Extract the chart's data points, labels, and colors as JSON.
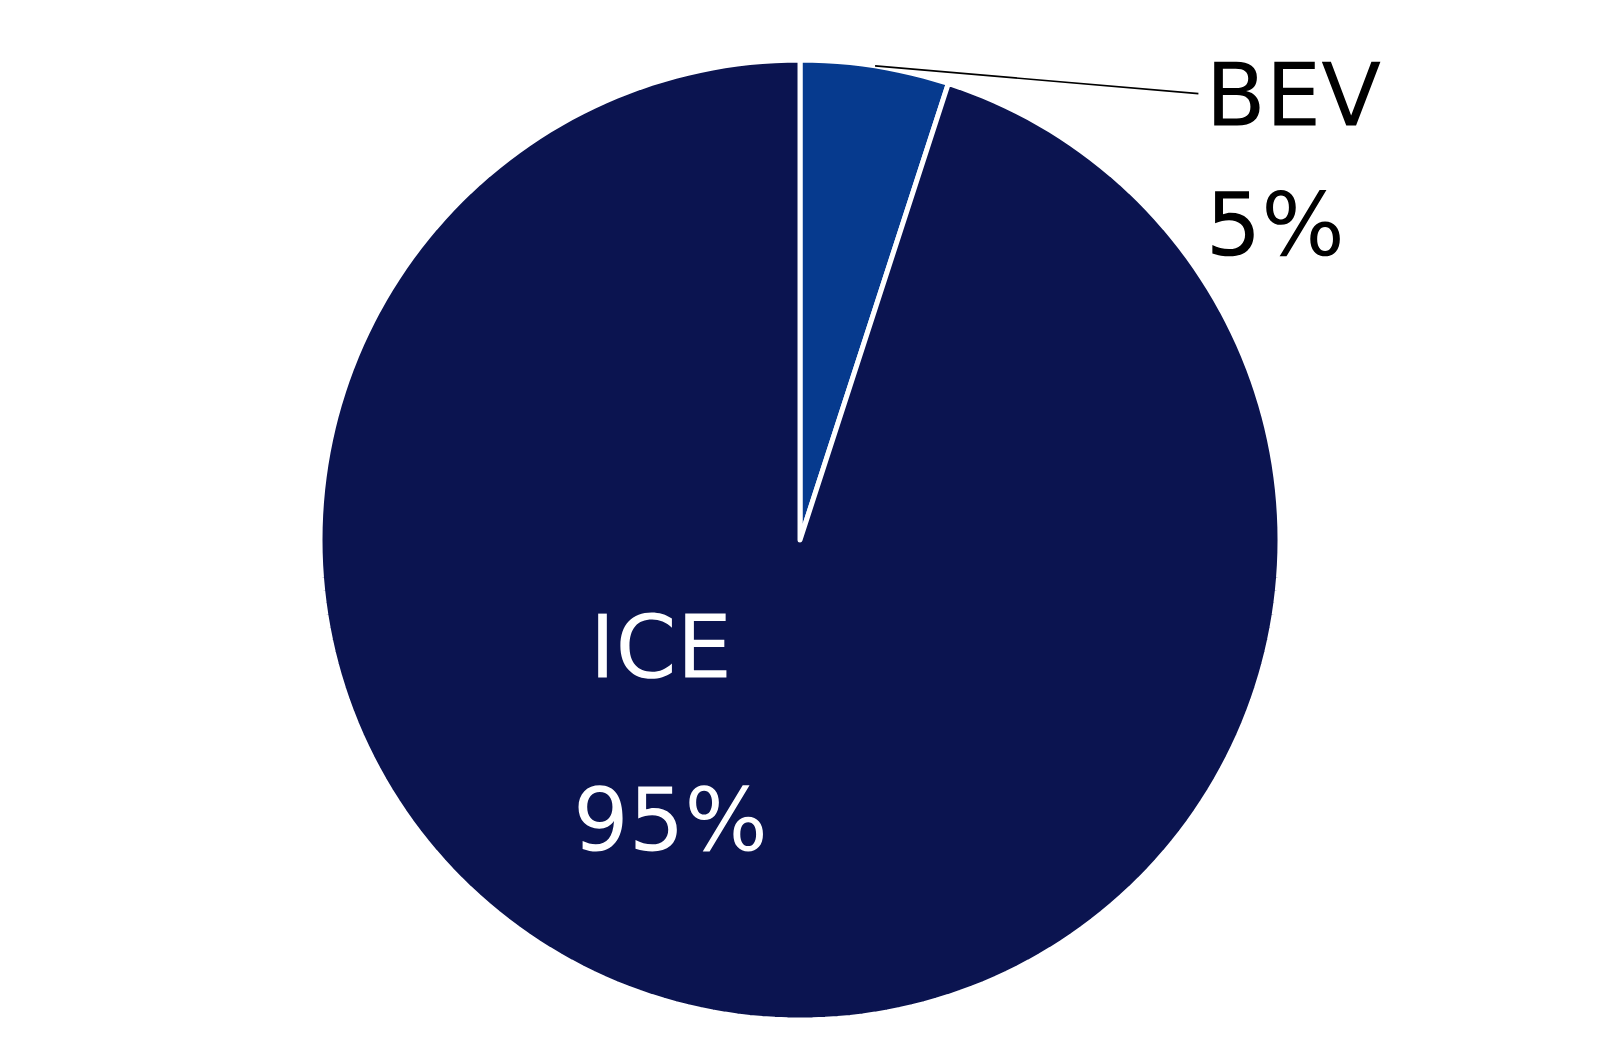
{
  "chart_data": {
    "type": "pie",
    "categories": [
      "BEV",
      "ICE"
    ],
    "values": [
      5,
      95
    ],
    "value_labels": [
      "5%",
      "95%"
    ],
    "colors": [
      "#063a8e",
      "#0b1450"
    ]
  }
}
